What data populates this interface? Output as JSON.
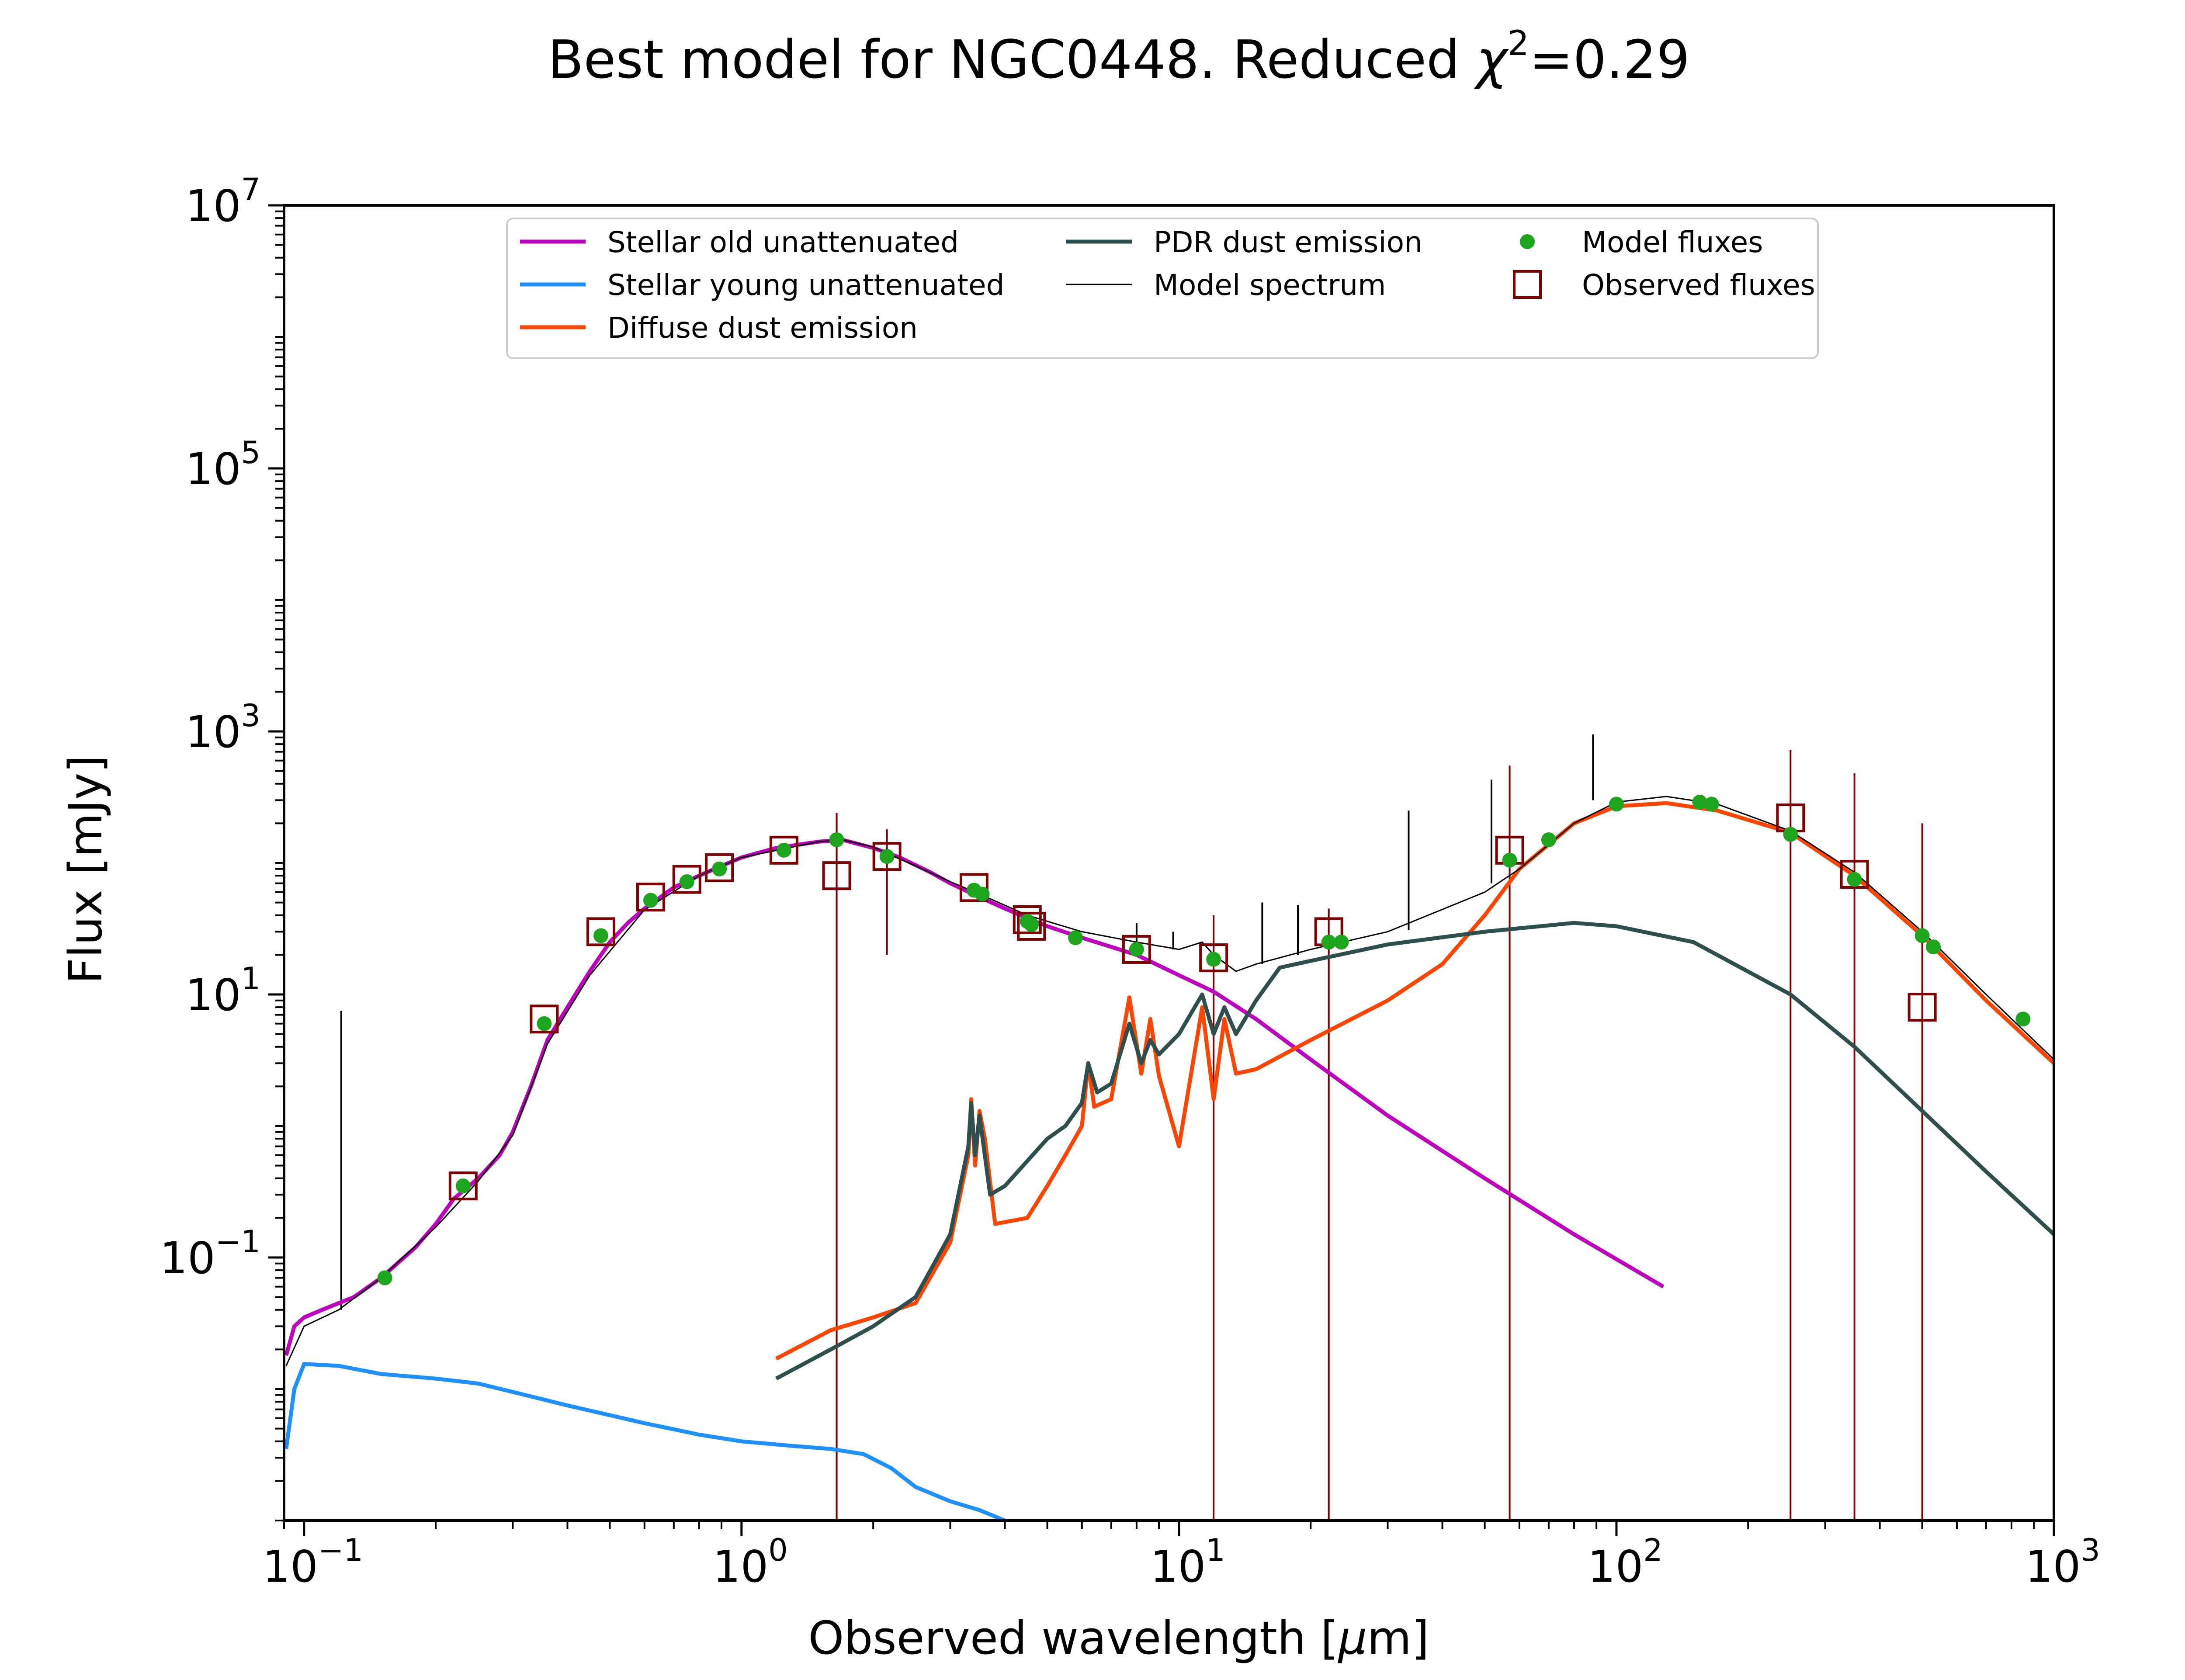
{
  "chart_data": {
    "type": "line",
    "title_main": "Best model for NGC0448. Reduced ",
    "title_chi": "χ",
    "title_sup": "2",
    "title_value": "=0.29",
    "xlabel_main": "Observed wavelength [",
    "xlabel_mu": "μ",
    "xlabel_end": "m]",
    "ylabel": "Flux [mJy]",
    "xscale": "log",
    "yscale": "log",
    "xlim": [
      0.09,
      1000
    ],
    "ylim": [
      0.001,
      10000000
    ],
    "x_ticks": [
      {
        "value": 0.1,
        "base": "10",
        "exp": "−1"
      },
      {
        "value": 1,
        "base": "10",
        "exp": "0"
      },
      {
        "value": 10,
        "base": "10",
        "exp": "1"
      },
      {
        "value": 100,
        "base": "10",
        "exp": "2"
      },
      {
        "value": 1000,
        "base": "10",
        "exp": "3"
      }
    ],
    "y_ticks": [
      {
        "value": 0.1,
        "base": "10",
        "exp": "−1"
      },
      {
        "value": 10,
        "base": "10",
        "exp": "1"
      },
      {
        "value": 1000,
        "base": "10",
        "exp": "3"
      },
      {
        "value": 100000,
        "base": "10",
        "exp": "5"
      },
      {
        "value": 10000000,
        "base": "10",
        "exp": "7"
      }
    ],
    "legend_position": "top-center",
    "legend": [
      {
        "label": "Stellar old unattenuated",
        "kind": "line",
        "color": "#bf00bf"
      },
      {
        "label": "Stellar young unattenuated",
        "kind": "line",
        "color": "#1e90ff"
      },
      {
        "label": "Diffuse dust emission",
        "kind": "line",
        "color": "#ff4500"
      },
      {
        "label": "PDR dust emission",
        "kind": "line",
        "color": "#2f4f4f"
      },
      {
        "label": "Model spectrum",
        "kind": "thinline",
        "color": "#000000"
      },
      {
        "label": "Model fluxes",
        "kind": "dot",
        "color": "#1ea51e"
      },
      {
        "label": "Observed fluxes",
        "kind": "square",
        "color": "#800000"
      }
    ],
    "series": [
      {
        "name": "Stellar old unattenuated",
        "color": "#bf00bf",
        "points": [
          [
            0.091,
            0.018
          ],
          [
            0.095,
            0.03
          ],
          [
            0.1,
            0.035
          ],
          [
            0.11,
            0.04
          ],
          [
            0.12,
            0.045
          ],
          [
            0.13,
            0.05
          ],
          [
            0.15,
            0.07
          ],
          [
            0.18,
            0.12
          ],
          [
            0.2,
            0.18
          ],
          [
            0.22,
            0.28
          ],
          [
            0.25,
            0.4
          ],
          [
            0.28,
            0.6
          ],
          [
            0.3,
            0.9
          ],
          [
            0.33,
            2.0
          ],
          [
            0.36,
            4.5
          ],
          [
            0.4,
            8.0
          ],
          [
            0.45,
            15
          ],
          [
            0.5,
            25
          ],
          [
            0.55,
            35
          ],
          [
            0.6,
            45
          ],
          [
            0.7,
            65
          ],
          [
            0.8,
            80
          ],
          [
            0.9,
            95
          ],
          [
            1.0,
            110
          ],
          [
            1.2,
            130
          ],
          [
            1.5,
            145
          ],
          [
            1.7,
            150
          ],
          [
            2.0,
            130
          ],
          [
            2.3,
            110
          ],
          [
            2.7,
            85
          ],
          [
            3.0,
            70
          ],
          [
            3.5,
            55
          ],
          [
            4.0,
            45
          ],
          [
            4.5,
            38
          ],
          [
            5.0,
            33
          ],
          [
            6.0,
            27
          ],
          [
            7.0,
            23
          ],
          [
            8.0,
            20
          ],
          [
            10.0,
            14
          ],
          [
            12.0,
            10.5
          ],
          [
            15.0,
            6.5
          ],
          [
            20.0,
            3.2
          ],
          [
            30.0,
            1.2
          ],
          [
            50.0,
            0.4
          ],
          [
            80.0,
            0.15
          ],
          [
            128.0,
            0.06
          ]
        ]
      },
      {
        "name": "Stellar young unattenuated",
        "color": "#1e90ff",
        "points": [
          [
            0.091,
            0.0035
          ],
          [
            0.095,
            0.01
          ],
          [
            0.1,
            0.0155
          ],
          [
            0.12,
            0.015
          ],
          [
            0.15,
            0.013
          ],
          [
            0.2,
            0.012
          ],
          [
            0.25,
            0.011
          ],
          [
            0.3,
            0.0095
          ],
          [
            0.4,
            0.0075
          ],
          [
            0.6,
            0.0055
          ],
          [
            0.8,
            0.0045
          ],
          [
            1.0,
            0.004
          ],
          [
            1.3,
            0.0037
          ],
          [
            1.6,
            0.0035
          ],
          [
            1.9,
            0.0032
          ],
          [
            2.2,
            0.0025
          ],
          [
            2.5,
            0.0018
          ],
          [
            3.0,
            0.0014
          ],
          [
            3.5,
            0.0012
          ],
          [
            4.0,
            0.001
          ]
        ]
      },
      {
        "name": "Diffuse dust emission",
        "color": "#ff4500",
        "points": [
          [
            1.2,
            0.017
          ],
          [
            1.6,
            0.028
          ],
          [
            2.0,
            0.035
          ],
          [
            2.5,
            0.045
          ],
          [
            3.0,
            0.13
          ],
          [
            3.3,
            0.6
          ],
          [
            3.35,
            1.6
          ],
          [
            3.42,
            0.5
          ],
          [
            3.5,
            1.3
          ],
          [
            3.6,
            0.8
          ],
          [
            3.8,
            0.18
          ],
          [
            4.5,
            0.2
          ],
          [
            5.0,
            0.35
          ],
          [
            5.5,
            0.6
          ],
          [
            6.0,
            1.0
          ],
          [
            6.2,
            3.0
          ],
          [
            6.4,
            1.4
          ],
          [
            7.0,
            1.6
          ],
          [
            7.7,
            9.5
          ],
          [
            8.2,
            2.5
          ],
          [
            8.6,
            6.5
          ],
          [
            9.0,
            2.4
          ],
          [
            10.0,
            0.7
          ],
          [
            11.3,
            8.0
          ],
          [
            12.0,
            1.6
          ],
          [
            12.7,
            6.5
          ],
          [
            13.5,
            2.5
          ],
          [
            15.0,
            2.7
          ],
          [
            20.0,
            4.5
          ],
          [
            30.0,
            9.0
          ],
          [
            40.0,
            17
          ],
          [
            50.0,
            40
          ],
          [
            60.0,
            90
          ],
          [
            80.0,
            200
          ],
          [
            100.0,
            270
          ],
          [
            130.0,
            285
          ],
          [
            170.0,
            250
          ],
          [
            250.0,
            170
          ],
          [
            350.0,
            80
          ],
          [
            500.0,
            28
          ],
          [
            700.0,
            9
          ],
          [
            1000.0,
            3.0
          ]
        ]
      },
      {
        "name": "PDR dust emission",
        "color": "#2f4f4f",
        "points": [
          [
            1.2,
            0.012
          ],
          [
            1.6,
            0.02
          ],
          [
            2.0,
            0.03
          ],
          [
            2.5,
            0.05
          ],
          [
            3.0,
            0.15
          ],
          [
            3.3,
            0.7
          ],
          [
            3.35,
            1.5
          ],
          [
            3.42,
            0.6
          ],
          [
            3.5,
            1.2
          ],
          [
            3.7,
            0.3
          ],
          [
            4.0,
            0.35
          ],
          [
            5.0,
            0.8
          ],
          [
            5.5,
            1.0
          ],
          [
            6.0,
            1.5
          ],
          [
            6.2,
            3.0
          ],
          [
            6.5,
            1.8
          ],
          [
            7.0,
            2.1
          ],
          [
            7.7,
            6.0
          ],
          [
            8.2,
            3.0
          ],
          [
            8.6,
            4.5
          ],
          [
            9.0,
            3.5
          ],
          [
            10.0,
            5.0
          ],
          [
            11.3,
            10.0
          ],
          [
            12.0,
            5.0
          ],
          [
            12.7,
            8.0
          ],
          [
            13.5,
            5.0
          ],
          [
            15.0,
            9.0
          ],
          [
            17.0,
            16
          ],
          [
            20.0,
            18
          ],
          [
            30.0,
            24
          ],
          [
            50.0,
            30
          ],
          [
            80.0,
            35
          ],
          [
            100.0,
            33
          ],
          [
            150.0,
            25
          ],
          [
            250.0,
            10
          ],
          [
            350.0,
            4.0
          ],
          [
            500.0,
            1.3
          ],
          [
            700.0,
            0.45
          ],
          [
            1000.0,
            0.15
          ]
        ]
      },
      {
        "name": "Model spectrum",
        "color": "#000000",
        "points": [
          [
            0.091,
            0.015
          ],
          [
            0.1,
            0.03
          ],
          [
            0.12,
            0.04
          ],
          [
            0.15,
            0.07
          ],
          [
            0.2,
            0.17
          ],
          [
            0.25,
            0.38
          ],
          [
            0.3,
            0.85
          ],
          [
            0.36,
            4.2
          ],
          [
            0.45,
            14
          ],
          [
            0.6,
            44
          ],
          [
            0.8,
            80
          ],
          [
            1.0,
            110
          ],
          [
            1.5,
            145
          ],
          [
            1.7,
            150
          ],
          [
            2.0,
            132
          ],
          [
            2.5,
            95
          ],
          [
            3.0,
            72
          ],
          [
            3.5,
            58
          ],
          [
            4.5,
            40
          ],
          [
            6.0,
            30
          ],
          [
            8.0,
            25
          ],
          [
            10.0,
            22
          ],
          [
            11.3,
            25
          ],
          [
            12.0,
            20
          ],
          [
            13.5,
            15
          ],
          [
            15.0,
            17
          ],
          [
            20.0,
            22
          ],
          [
            30.0,
            30
          ],
          [
            50.0,
            60
          ],
          [
            60.0,
            90
          ],
          [
            80.0,
            200
          ],
          [
            100.0,
            290
          ],
          [
            130.0,
            320
          ],
          [
            170.0,
            280
          ],
          [
            250.0,
            175
          ],
          [
            350.0,
            85
          ],
          [
            500.0,
            30
          ],
          [
            700.0,
            10
          ],
          [
            1000.0,
            3.2
          ]
        ]
      }
    ],
    "model_fluxes": [
      [
        0.153,
        0.07
      ],
      [
        0.231,
        0.35
      ],
      [
        0.354,
        6.0
      ],
      [
        0.477,
        28
      ],
      [
        0.62,
        52
      ],
      [
        0.75,
        72
      ],
      [
        0.89,
        90
      ],
      [
        1.25,
        125
      ],
      [
        1.65,
        150
      ],
      [
        2.15,
        112
      ],
      [
        3.4,
        62
      ],
      [
        3.55,
        58
      ],
      [
        4.5,
        36
      ],
      [
        4.6,
        34
      ],
      [
        5.8,
        27
      ],
      [
        8.0,
        22
      ],
      [
        12.0,
        18.5
      ],
      [
        22.0,
        25
      ],
      [
        23.5,
        25
      ],
      [
        57.0,
        105
      ],
      [
        70.0,
        150
      ],
      [
        100.0,
        280
      ],
      [
        155.0,
        290
      ],
      [
        165.0,
        280
      ],
      [
        250.0,
        165
      ],
      [
        350.0,
        75
      ],
      [
        500.0,
        28
      ],
      [
        530.0,
        23
      ],
      [
        850.0,
        6.5
      ]
    ],
    "observed_fluxes": [
      [
        0.231,
        0.35
      ],
      [
        0.354,
        6.5
      ],
      [
        0.477,
        30
      ],
      [
        0.62,
        55
      ],
      [
        0.75,
        75
      ],
      [
        0.89,
        92
      ],
      [
        1.25,
        125
      ],
      [
        1.65,
        80
      ],
      [
        2.15,
        112
      ],
      [
        3.4,
        65
      ],
      [
        4.5,
        37
      ],
      [
        4.6,
        33
      ],
      [
        8.0,
        22
      ],
      [
        12.0,
        19
      ],
      [
        22.0,
        30
      ],
      [
        57.0,
        125
      ],
      [
        250.0,
        220
      ],
      [
        350.0,
        82
      ],
      [
        500.0,
        8
      ]
    ],
    "observed_errorbars": [
      [
        1.65,
        0.001,
        240
      ],
      [
        2.15,
        20,
        180
      ],
      [
        12.0,
        0.001,
        40
      ],
      [
        22.0,
        0.001,
        45
      ],
      [
        57.0,
        0.001,
        550
      ],
      [
        250.0,
        0.001,
        720
      ],
      [
        350.0,
        0.001,
        480
      ],
      [
        500.0,
        0.001,
        200
      ]
    ],
    "emission_lines": [
      [
        0.1216,
        0.04,
        7.5
      ],
      [
        8.0,
        25,
        35
      ],
      [
        9.7,
        22,
        30
      ],
      [
        15.5,
        17,
        50
      ],
      [
        18.7,
        20,
        48
      ],
      [
        33.5,
        31,
        250
      ],
      [
        51.8,
        70,
        430
      ],
      [
        88.4,
        300,
        950
      ]
    ]
  }
}
